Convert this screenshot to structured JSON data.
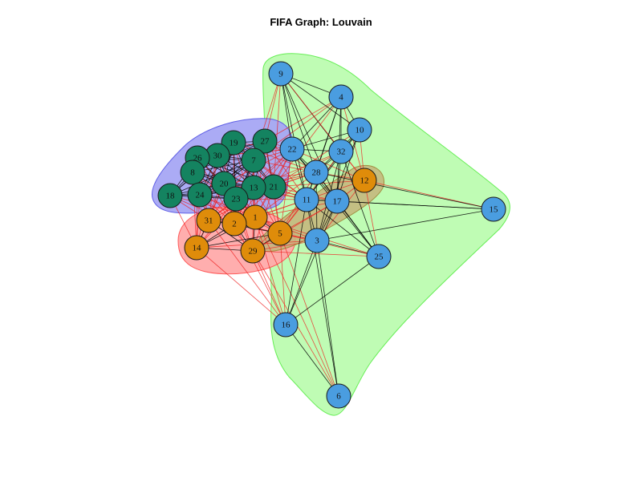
{
  "title": "FIFA Graph: Louvain",
  "colors": {
    "community_blue": "#4a9de0",
    "community_green": "#148360",
    "community_orange": "#df8c0a",
    "hull_green": "#bcfcb0",
    "hull_green_stroke": "#66ee55",
    "hull_blue": "#a6a6f4",
    "hull_blue_stroke": "#6060e6",
    "hull_red": "#ffaaaa",
    "hull_red_stroke": "#ff5a5a",
    "hull_olive": "#c4b47a",
    "hull_olive_stroke": "#a08e40",
    "edge_intra": "#000000",
    "edge_inter": "#ee2222",
    "node_stroke": "#1a1a1a"
  },
  "chart_data": {
    "type": "network",
    "title": "FIFA Graph: Louvain",
    "communities": [
      {
        "name": "",
        "color": "#4a9de0",
        "nodes": [
          9,
          4,
          10,
          22,
          32,
          28,
          11,
          17,
          15,
          3,
          25,
          16,
          6
        ]
      },
      {
        "name": "",
        "color": "#148360",
        "nodes": [
          27,
          19,
          30,
          26,
          7,
          8,
          20,
          21,
          13,
          24,
          18,
          23
        ]
      },
      {
        "name": "",
        "color": "#df8c0a",
        "nodes": [
          12,
          1,
          31,
          2,
          5,
          14,
          29
        ]
      }
    ],
    "nodes": [
      {
        "id": 9,
        "community": 0
      },
      {
        "id": 4,
        "community": 0
      },
      {
        "id": 10,
        "community": 0
      },
      {
        "id": 27,
        "community": 1
      },
      {
        "id": 19,
        "community": 1
      },
      {
        "id": 30,
        "community": 1
      },
      {
        "id": 26,
        "community": 1
      },
      {
        "id": 22,
        "community": 0
      },
      {
        "id": 32,
        "community": 0
      },
      {
        "id": 7,
        "community": 1
      },
      {
        "id": 8,
        "community": 1
      },
      {
        "id": 28,
        "community": 0
      },
      {
        "id": 12,
        "community": 2
      },
      {
        "id": 20,
        "community": 1
      },
      {
        "id": 21,
        "community": 1
      },
      {
        "id": 13,
        "community": 1
      },
      {
        "id": 24,
        "community": 1
      },
      {
        "id": 18,
        "community": 1
      },
      {
        "id": 23,
        "community": 1
      },
      {
        "id": 11,
        "community": 0
      },
      {
        "id": 17,
        "community": 0
      },
      {
        "id": 15,
        "community": 0
      },
      {
        "id": 1,
        "community": 2
      },
      {
        "id": 31,
        "community": 2
      },
      {
        "id": 2,
        "community": 2
      },
      {
        "id": 5,
        "community": 2
      },
      {
        "id": 14,
        "community": 2
      },
      {
        "id": 29,
        "community": 2
      },
      {
        "id": 3,
        "community": 0
      },
      {
        "id": 25,
        "community": 0
      },
      {
        "id": 16,
        "community": 0
      },
      {
        "id": 6,
        "community": 0
      }
    ]
  }
}
